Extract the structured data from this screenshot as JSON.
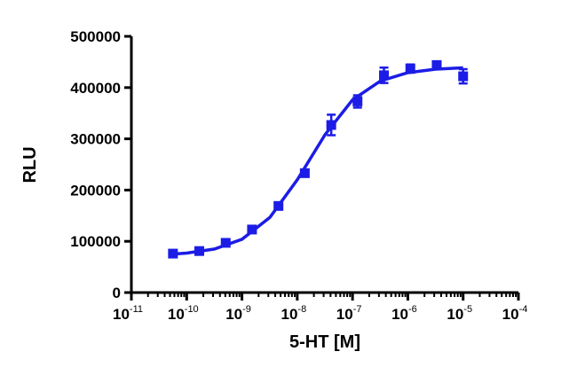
{
  "chart_data": {
    "type": "scatter",
    "xlabel": "5-HT [M]",
    "ylabel": "RLU",
    "color": "#1c1ce6",
    "xscale": "log",
    "x": [
      5.65e-11,
      1.69e-10,
      5.08e-10,
      1.52e-09,
      4.57e-09,
      1.37e-08,
      4.12e-08,
      1.23e-07,
      3.7e-07,
      1.11e-06,
      3.33e-06,
      1e-05
    ],
    "values": [
      76000,
      81000,
      97000,
      123000,
      169000,
      233000,
      327000,
      373000,
      424000,
      437000,
      444000,
      422000
    ],
    "errors": [
      3000,
      3000,
      3000,
      4000,
      4000,
      4000,
      20000,
      12000,
      15000,
      8000,
      4000,
      14000
    ],
    "curve": {
      "x": [
        5.6e-11,
        1e-10,
        3.2e-10,
        1e-09,
        3.2e-09,
        1e-08,
        3.2e-08,
        1e-07,
        3.2e-07,
        1e-06,
        3.2e-06,
        1e-05
      ],
      "values": [
        75000,
        77000,
        85000,
        104000,
        146500,
        220000,
        308500,
        376000,
        413000,
        429000,
        436000,
        438500
      ]
    },
    "xlim": [
      1e-11,
      0.0001
    ],
    "xticks": [
      {
        "value": 1e-11,
        "label": "10-11"
      },
      {
        "value": 1e-10,
        "label": "10-10"
      },
      {
        "value": 1e-09,
        "label": "10-9"
      },
      {
        "value": 1e-08,
        "label": "10-8"
      },
      {
        "value": 1e-07,
        "label": "10-7"
      },
      {
        "value": 1e-06,
        "label": "10-6"
      },
      {
        "value": 1e-05,
        "label": "10-5"
      },
      {
        "value": 0.0001,
        "label": "10-4"
      }
    ],
    "ylim": [
      0,
      500000
    ],
    "yticks": [
      0,
      100000,
      200000,
      300000,
      400000,
      500000
    ]
  }
}
